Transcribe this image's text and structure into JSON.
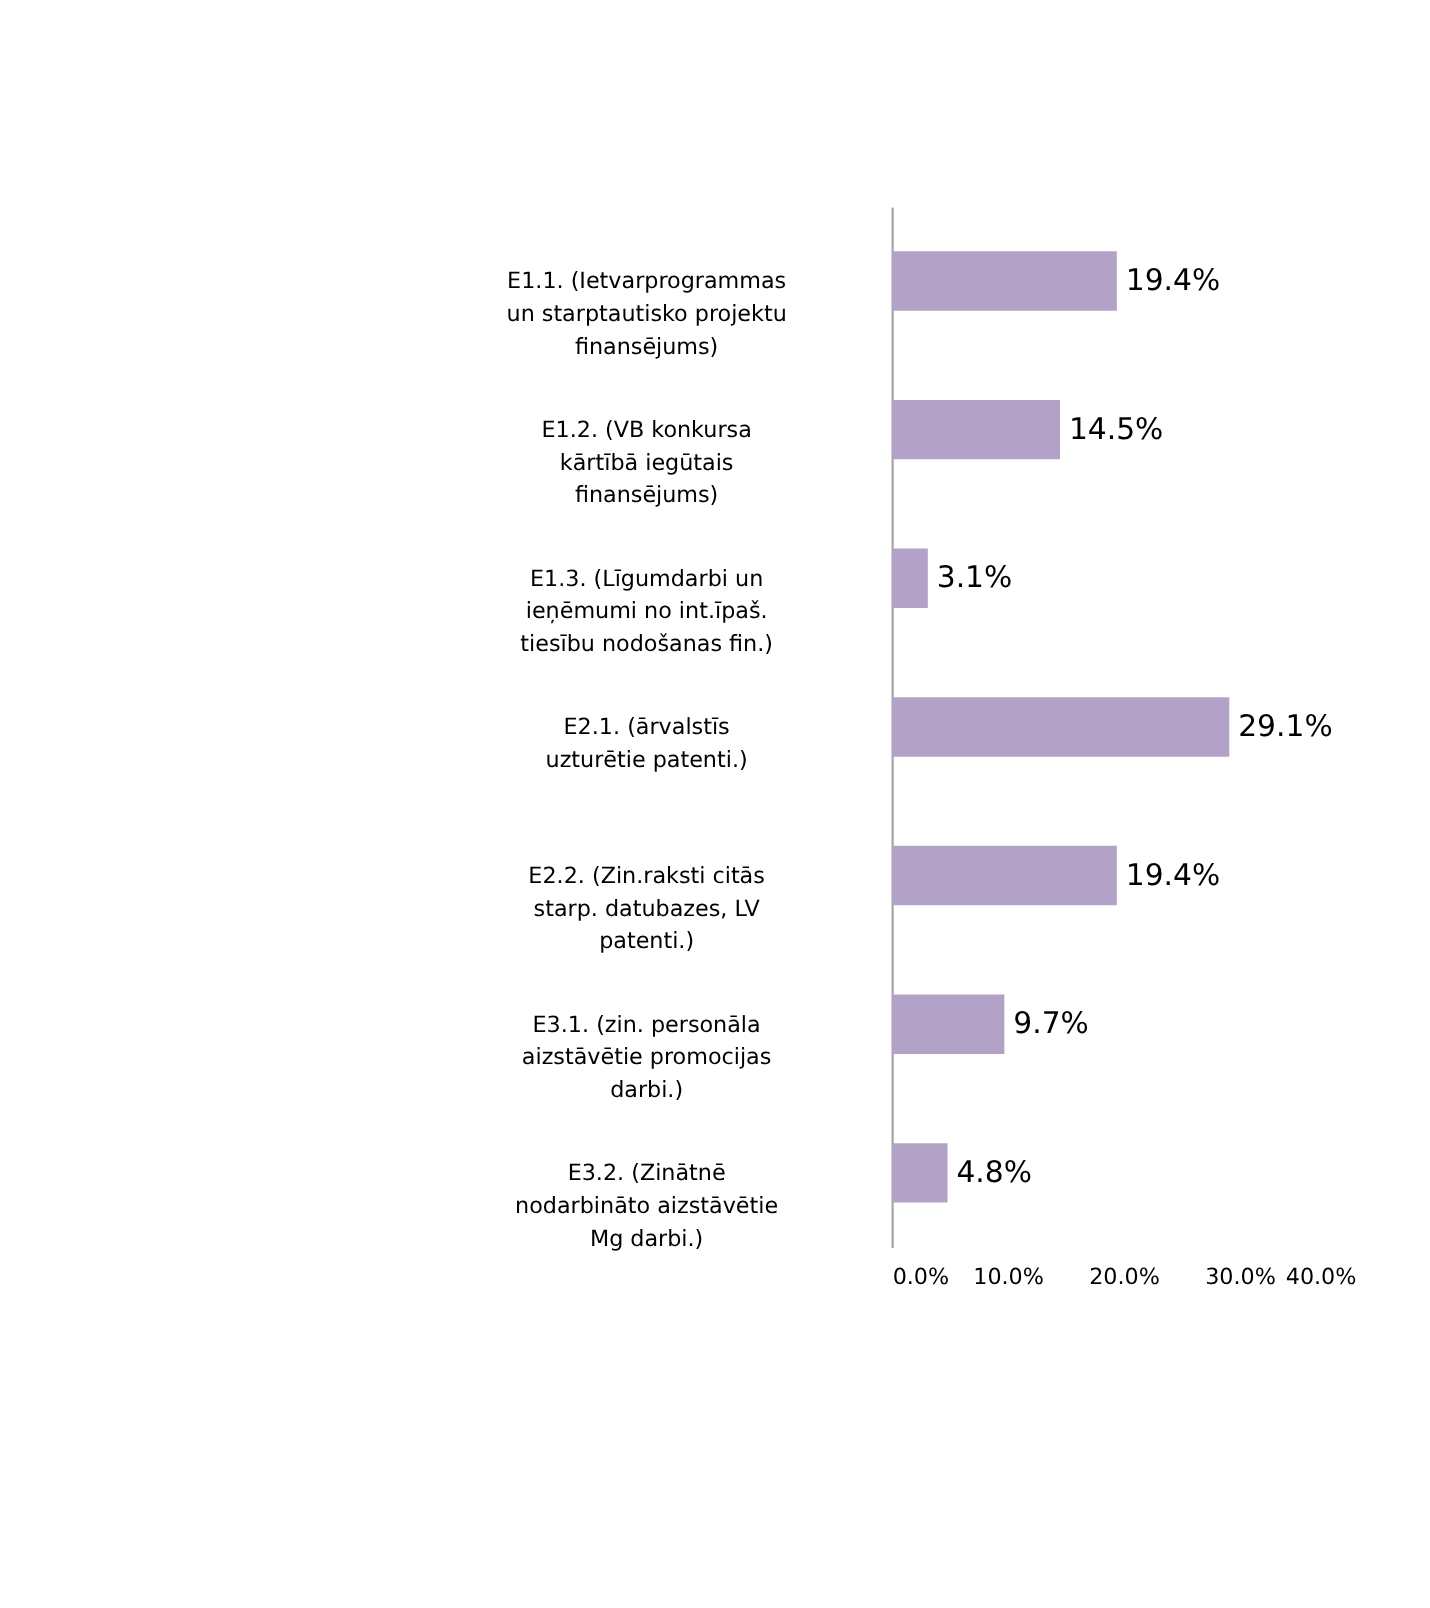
{
  "chart_data": {
    "type": "bar",
    "orientation": "horizontal",
    "categories": [
      "E1.1. (Ietvarprogrammas un starptautisko projektu finansējums)",
      "E1.2. (VB konkursa kārtībā iegūtais finansējums)",
      "E1.3. (Līgumdarbi un ieņēmumi no int.īpaš. tiesību nodošanas fin.)",
      "E2.1. (ārvalstīs uzturētie patenti.)",
      "E2.2. (Zin.raksti citās starp. datubazes, LV patenti.)",
      "E3.1. (zin. personāla aizstāvētie promocijas darbi.)",
      "E3.2. (Zinātnē nodarbināto aizstāvētie Mg darbi.)"
    ],
    "values": [
      19.4,
      14.5,
      3.1,
      29.1,
      19.4,
      9.7,
      4.8
    ],
    "value_labels": [
      "19.4%",
      "14.5%",
      "3.1%",
      "29.1%",
      "19.4%",
      "9.7%",
      "4.8%"
    ],
    "color": "#b3a2c7",
    "xlim": [
      0,
      40
    ],
    "xticks": [
      {
        "value": 0,
        "label": "0.0%"
      },
      {
        "value": 10,
        "label": "10.0%"
      },
      {
        "value": 20,
        "label": "20.0%"
      },
      {
        "value": 30,
        "label": "30.0%"
      },
      {
        "value": 40,
        "label": "40.0%"
      }
    ],
    "grid": false
  }
}
